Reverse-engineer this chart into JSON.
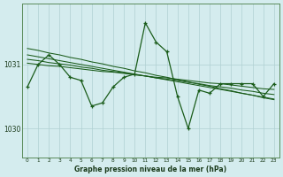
{
  "background_color": "#d4ecee",
  "grid_color": "#b0d0d2",
  "line_color": "#1a5c1a",
  "xlabel": "Graphe pression niveau de la mer (hPa)",
  "x_ticks": [
    0,
    1,
    2,
    3,
    4,
    5,
    6,
    7,
    8,
    9,
    10,
    11,
    12,
    13,
    14,
    15,
    16,
    17,
    18,
    19,
    20,
    21,
    22,
    23
  ],
  "ylim": [
    1029.55,
    1031.95
  ],
  "yticks": [
    1030,
    1031
  ],
  "main_series": [
    1030.65,
    1031.0,
    1031.15,
    1031.0,
    1030.8,
    1030.75,
    1030.35,
    1030.4,
    1030.65,
    1030.8,
    1030.85,
    1031.65,
    1031.35,
    1031.2,
    1030.5,
    1030.0,
    1030.6,
    1030.55,
    1030.7,
    1030.7,
    1030.7,
    1030.7,
    1030.5,
    1030.7
  ],
  "trend1": [
    1031.25,
    1031.22,
    1031.18,
    1031.15,
    1031.11,
    1031.08,
    1031.04,
    1031.01,
    1030.97,
    1030.94,
    1030.9,
    1030.87,
    1030.83,
    1030.8,
    1030.76,
    1030.73,
    1030.69,
    1030.66,
    1030.62,
    1030.59,
    1030.55,
    1030.52,
    1030.48,
    1030.45
  ],
  "trend2": [
    1031.15,
    1031.12,
    1031.09,
    1031.06,
    1031.03,
    1031.0,
    1030.97,
    1030.94,
    1030.91,
    1030.88,
    1030.85,
    1030.82,
    1030.79,
    1030.76,
    1030.73,
    1030.7,
    1030.67,
    1030.64,
    1030.61,
    1030.58,
    1030.55,
    1030.52,
    1030.49,
    1030.46
  ],
  "trend3": [
    1031.08,
    1031.06,
    1031.03,
    1031.01,
    1030.99,
    1030.96,
    1030.94,
    1030.91,
    1030.89,
    1030.87,
    1030.84,
    1030.82,
    1030.79,
    1030.77,
    1030.75,
    1030.72,
    1030.7,
    1030.67,
    1030.65,
    1030.63,
    1030.6,
    1030.58,
    1030.55,
    1030.53
  ],
  "trend4": [
    1031.02,
    1031.0,
    1030.98,
    1030.97,
    1030.95,
    1030.93,
    1030.91,
    1030.89,
    1030.88,
    1030.86,
    1030.84,
    1030.82,
    1030.8,
    1030.79,
    1030.77,
    1030.75,
    1030.73,
    1030.71,
    1030.7,
    1030.68,
    1030.66,
    1030.64,
    1030.62,
    1030.61
  ]
}
